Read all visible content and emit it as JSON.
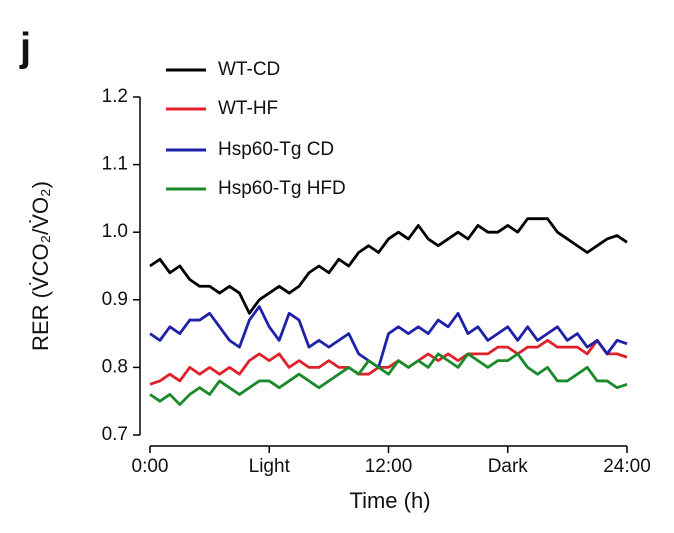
{
  "chart_data": {
    "type": "line",
    "panel_label": "j",
    "xlabel": "Time (h)",
    "ylabel": "RER (V̇CO₂/V̇O₂)",
    "x": [
      0,
      0.5,
      1,
      1.5,
      2,
      2.5,
      3,
      3.5,
      4,
      4.5,
      5,
      5.5,
      6,
      6.5,
      7,
      7.5,
      8,
      8.5,
      9,
      9.5,
      10,
      10.5,
      11,
      11.5,
      12,
      12.5,
      13,
      13.5,
      14,
      14.5,
      15,
      15.5,
      16,
      16.5,
      17,
      17.5,
      18,
      18.5,
      19,
      19.5,
      20,
      20.5,
      21,
      21.5,
      22,
      22.5,
      23,
      23.5,
      24
    ],
    "series": [
      {
        "name": "WT-CD",
        "color": "#000000",
        "values": [
          0.95,
          0.96,
          0.94,
          0.95,
          0.93,
          0.92,
          0.92,
          0.91,
          0.92,
          0.91,
          0.88,
          0.9,
          0.91,
          0.92,
          0.91,
          0.92,
          0.94,
          0.95,
          0.94,
          0.96,
          0.95,
          0.97,
          0.98,
          0.97,
          0.99,
          1.0,
          0.99,
          1.01,
          0.99,
          0.98,
          0.99,
          1.0,
          0.99,
          1.01,
          1.0,
          1.0,
          1.01,
          1.0,
          1.02,
          1.02,
          1.02,
          1.0,
          0.99,
          0.98,
          0.97,
          0.98,
          0.99,
          0.995,
          0.985
        ]
      },
      {
        "name": "WT-HF",
        "color": "#e0202a",
        "values": [
          0.775,
          0.78,
          0.79,
          0.78,
          0.8,
          0.79,
          0.8,
          0.79,
          0.8,
          0.79,
          0.81,
          0.82,
          0.81,
          0.82,
          0.8,
          0.81,
          0.8,
          0.8,
          0.81,
          0.8,
          0.8,
          0.79,
          0.79,
          0.8,
          0.8,
          0.81,
          0.8,
          0.81,
          0.82,
          0.81,
          0.82,
          0.81,
          0.82,
          0.82,
          0.82,
          0.83,
          0.83,
          0.82,
          0.83,
          0.83,
          0.84,
          0.83,
          0.83,
          0.83,
          0.82,
          0.84,
          0.82,
          0.82,
          0.815
        ]
      },
      {
        "name": "Hsp60-Tg CD",
        "color": "#1f22a8",
        "values": [
          0.85,
          0.84,
          0.86,
          0.85,
          0.87,
          0.87,
          0.88,
          0.86,
          0.84,
          0.83,
          0.87,
          0.89,
          0.86,
          0.84,
          0.88,
          0.87,
          0.83,
          0.84,
          0.83,
          0.84,
          0.85,
          0.82,
          0.81,
          0.8,
          0.85,
          0.86,
          0.85,
          0.86,
          0.85,
          0.87,
          0.86,
          0.88,
          0.85,
          0.86,
          0.84,
          0.85,
          0.86,
          0.84,
          0.86,
          0.84,
          0.85,
          0.86,
          0.84,
          0.85,
          0.83,
          0.84,
          0.82,
          0.84,
          0.835
        ]
      },
      {
        "name": "Hsp60-Tg HFD",
        "color": "#1a8a2a",
        "values": [
          0.76,
          0.75,
          0.76,
          0.745,
          0.76,
          0.77,
          0.76,
          0.78,
          0.77,
          0.76,
          0.77,
          0.78,
          0.78,
          0.77,
          0.78,
          0.79,
          0.78,
          0.77,
          0.78,
          0.79,
          0.8,
          0.79,
          0.81,
          0.8,
          0.79,
          0.81,
          0.8,
          0.81,
          0.8,
          0.82,
          0.81,
          0.8,
          0.82,
          0.81,
          0.8,
          0.81,
          0.81,
          0.82,
          0.8,
          0.79,
          0.8,
          0.78,
          0.78,
          0.79,
          0.8,
          0.78,
          0.78,
          0.77,
          0.775
        ]
      }
    ],
    "xlim": [
      0,
      24
    ],
    "xticks": [
      {
        "value": 0,
        "label": "0:00"
      },
      {
        "value": 6,
        "label": "Light"
      },
      {
        "value": 12,
        "label": "12:00"
      },
      {
        "value": 18,
        "label": "Dark"
      },
      {
        "value": 24,
        "label": "24:00"
      }
    ],
    "ylim": [
      0.7,
      1.2
    ],
    "yticks": [
      0.7,
      0.8,
      0.9,
      {
        "value": 1,
        "label": "1.0"
      },
      1.1,
      1.2
    ],
    "grid": false
  }
}
